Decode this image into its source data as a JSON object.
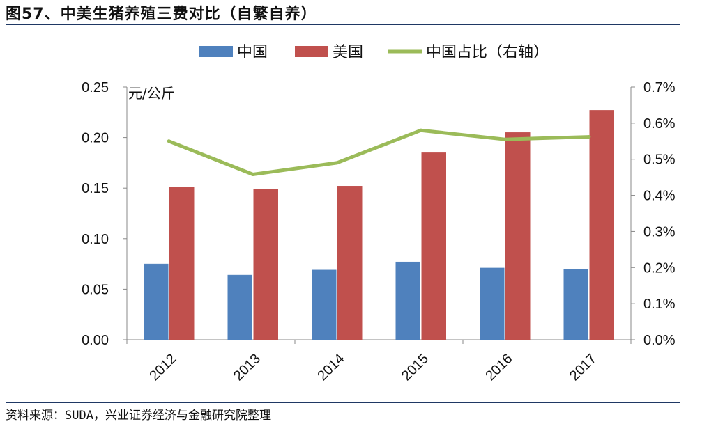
{
  "figure": {
    "title": "图57、中美生猪养殖三费对比（自繁自养）",
    "source": "资料来源：SUDA，兴业证券经济与金融研究院整理"
  },
  "chart_data": {
    "type": "bar",
    "categories": [
      "2012",
      "2013",
      "2014",
      "2015",
      "2016",
      "2017"
    ],
    "series": [
      {
        "name": "中国",
        "type": "bar",
        "axis": "left",
        "color": "#4f81bd",
        "values": [
          0.075,
          0.064,
          0.069,
          0.077,
          0.071,
          0.07
        ]
      },
      {
        "name": "美国",
        "type": "bar",
        "axis": "left",
        "color": "#c0504d",
        "values": [
          0.151,
          0.149,
          0.152,
          0.185,
          0.205,
          0.227
        ]
      },
      {
        "name": "中国占比（右轴）",
        "type": "line",
        "axis": "right",
        "color": "#9bbb59",
        "values": [
          0.0055,
          0.00458,
          0.0049,
          0.0058,
          0.00555,
          0.00562
        ]
      }
    ],
    "ylabel": "元/公斤",
    "ylim": [
      0,
      0.25
    ],
    "yticks": [
      "0.00",
      "0.05",
      "0.10",
      "0.15",
      "0.20",
      "0.25"
    ],
    "y2lim": [
      0,
      0.007
    ],
    "y2ticks": [
      "0.0%",
      "0.1%",
      "0.2%",
      "0.3%",
      "0.4%",
      "0.5%",
      "0.6%",
      "0.7%"
    ],
    "legend_position": "top-center",
    "grid": false
  }
}
